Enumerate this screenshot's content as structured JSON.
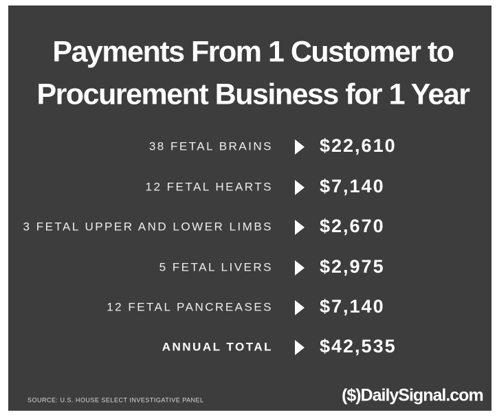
{
  "title": [
    "Payments From 1 Customer to",
    "Procurement Business for 1 Year"
  ],
  "rows": [
    {
      "label": "38 FETAL BRAINS",
      "amount": "$22,610"
    },
    {
      "label": "12 FETAL HEARTS",
      "amount": "$7,140"
    },
    {
      "label": "3 FETAL UPPER AND LOWER LIMBS",
      "amount": "$2,670"
    },
    {
      "label": "5 FETAL LIVERS",
      "amount": "$2,975"
    },
    {
      "label": "12 FETAL PANCREASES",
      "amount": "$7,140"
    }
  ],
  "total": {
    "label": "ANNUAL TOTAL",
    "amount": "$42,535"
  },
  "source": "SOURCE: U.S. HOUSE SELECT INVESTIGATIVE PANEL",
  "brand": "($)DailySignal.com"
}
